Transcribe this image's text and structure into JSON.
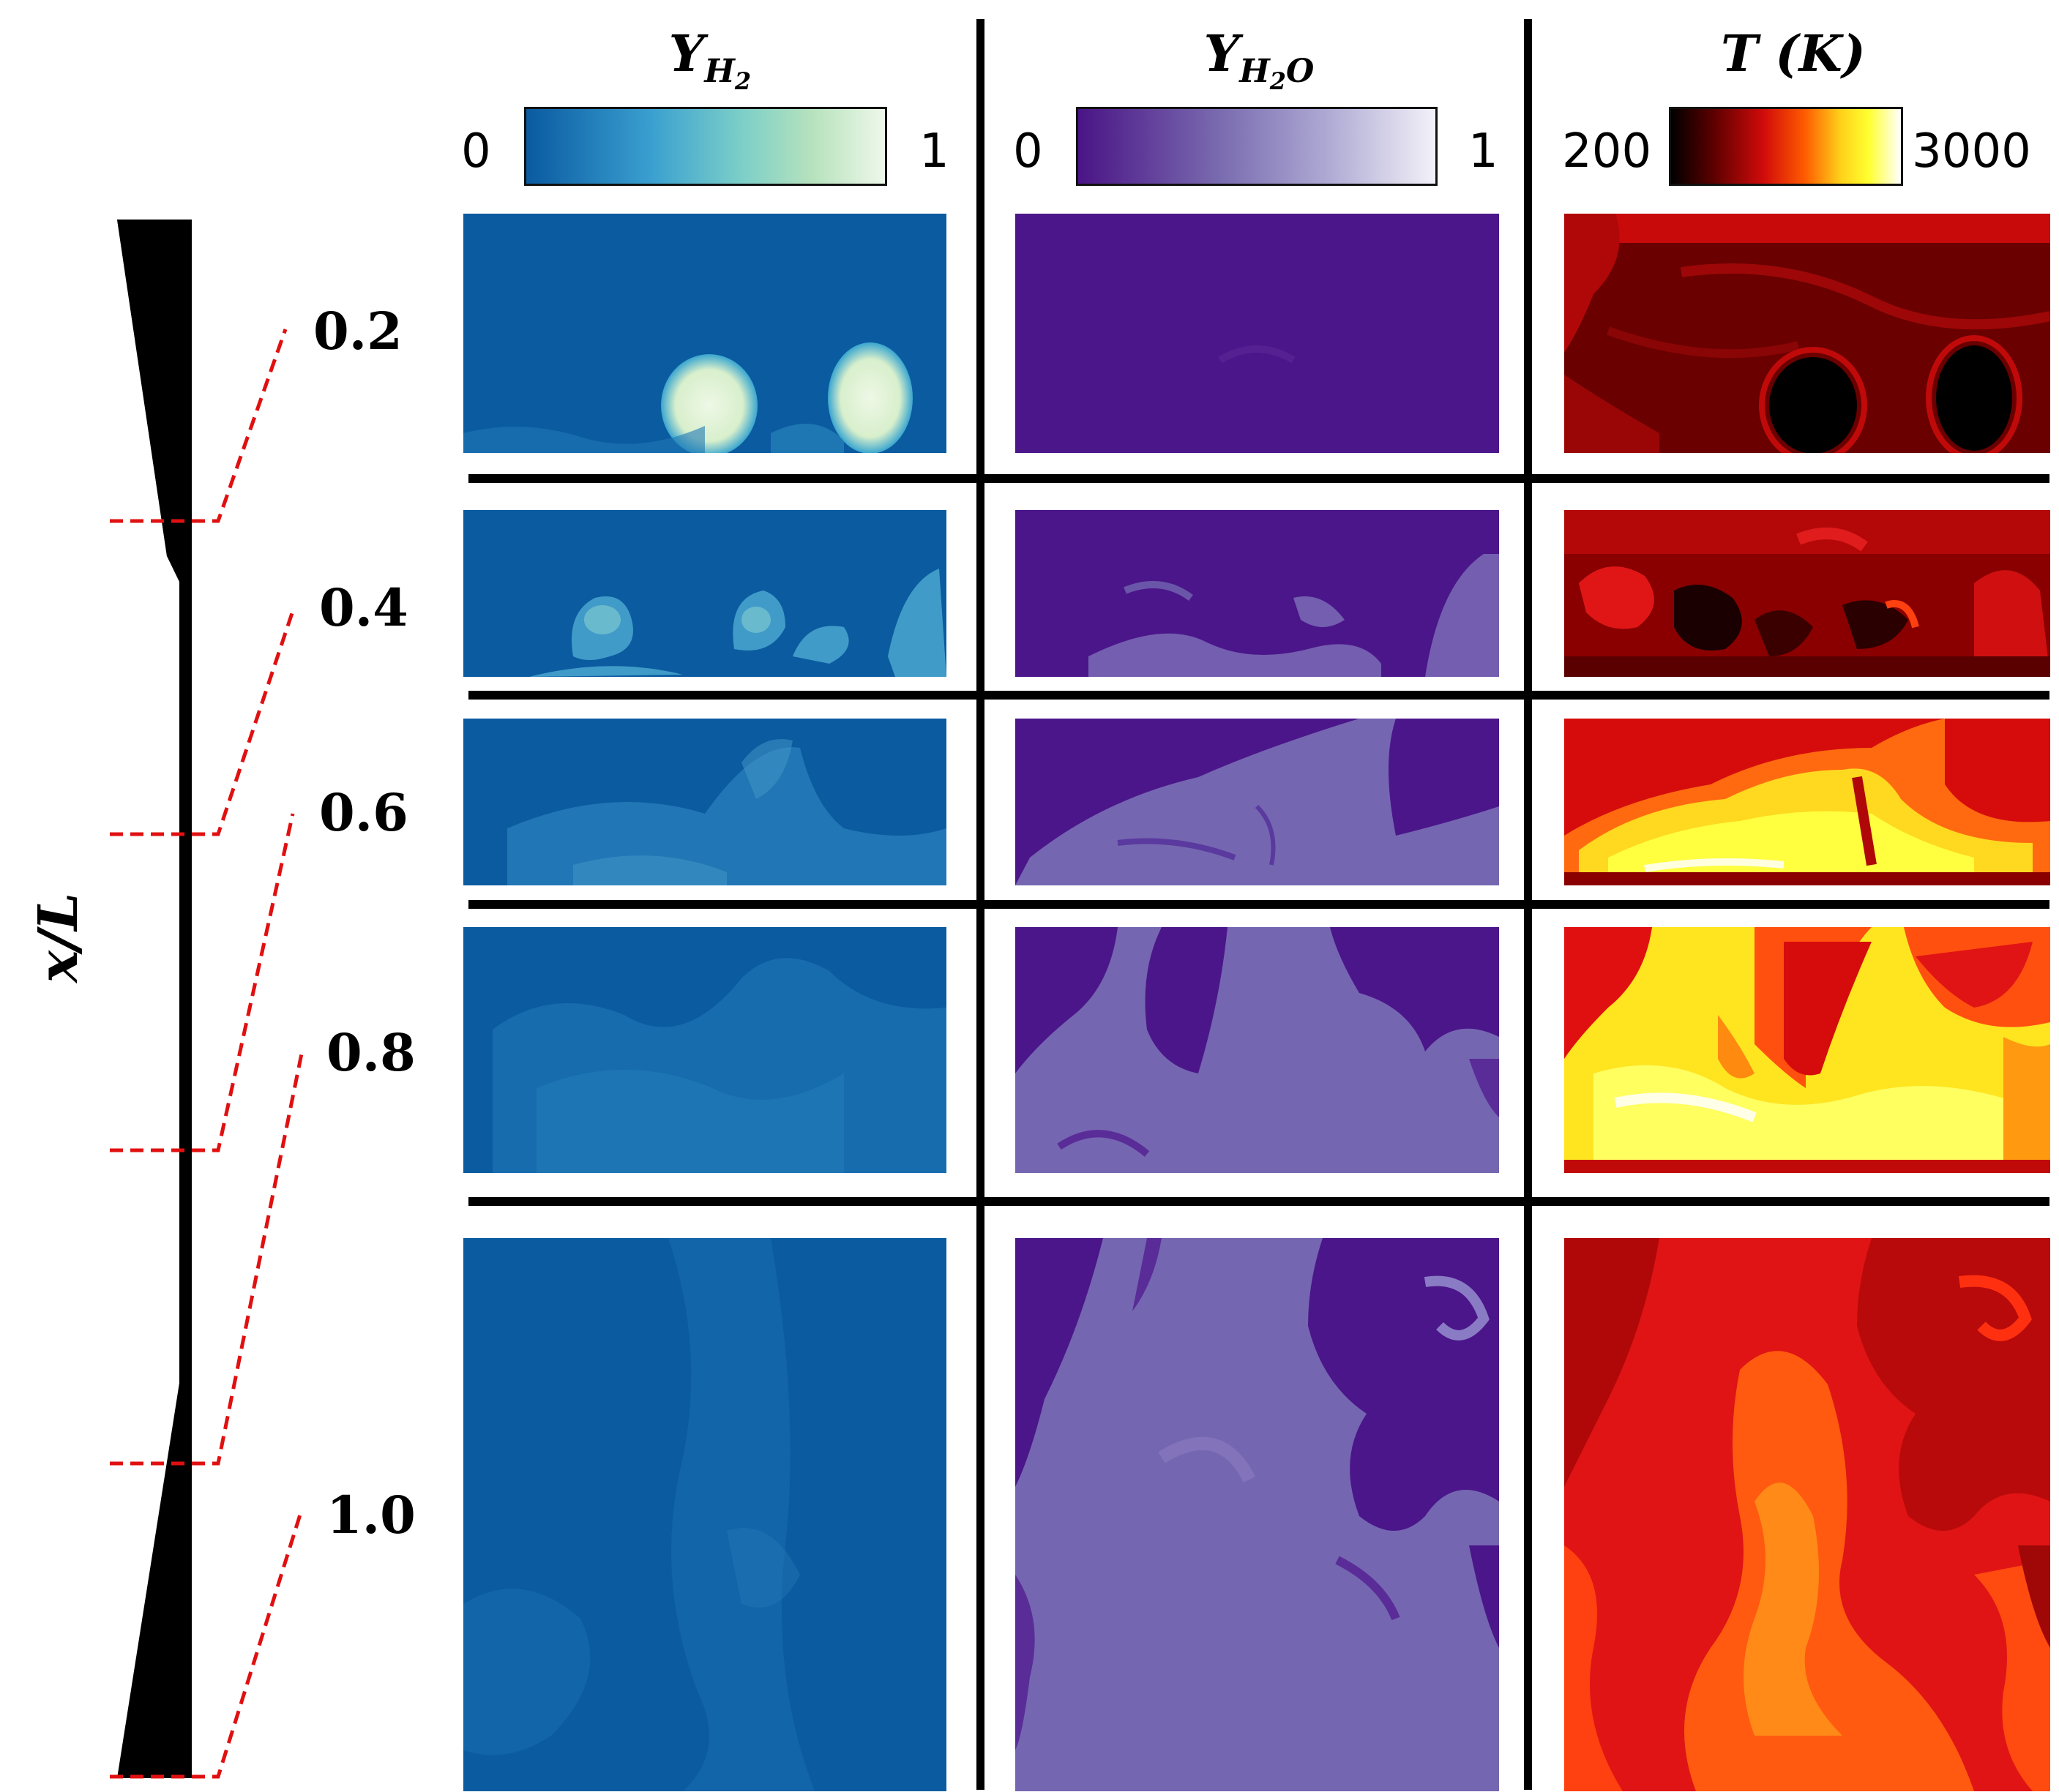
{
  "figure": {
    "columns": [
      {
        "id": "h2",
        "title_main": "Y",
        "title_sub": "H",
        "title_subsub": "2",
        "title_tail": "",
        "range_min": "0",
        "range_max": "1",
        "colormap": [
          "#0a5aa0",
          "#46b0d6",
          "#9ed9c4",
          "#ecf7e8"
        ]
      },
      {
        "id": "h2o",
        "title_main": "Y",
        "title_sub": "H",
        "title_subsub": "2",
        "title_tail": "O",
        "range_min": "0",
        "range_max": "1",
        "colormap": [
          "#4a1486",
          "#7d6fb3",
          "#c6c3e0",
          "#f4f2f8"
        ]
      },
      {
        "id": "temp",
        "title_main": "T (K)",
        "title_sub": "",
        "title_subsub": "",
        "title_tail": "",
        "range_min": "200",
        "range_max": "3000",
        "colormap": [
          "#000000",
          "#7a0000",
          "#e11010",
          "#ff6a00",
          "#ffff20",
          "#ffffff"
        ]
      }
    ],
    "rows": [
      {
        "label": "0.2"
      },
      {
        "label": "0.4"
      },
      {
        "label": "0.6"
      },
      {
        "label": "0.8"
      },
      {
        "label": "1.0"
      }
    ],
    "axis_title": "x/L",
    "colors": {
      "h2_base": "#0b5ba0",
      "h2o_base": "#4b168a",
      "h2o_mixed": "#7668b2",
      "t_dark": "#5c0000",
      "t_red": "#d80c0c",
      "t_orange": "#ff7a10",
      "t_yellow": "#ffee30",
      "dashed_line": "#e01010"
    }
  }
}
